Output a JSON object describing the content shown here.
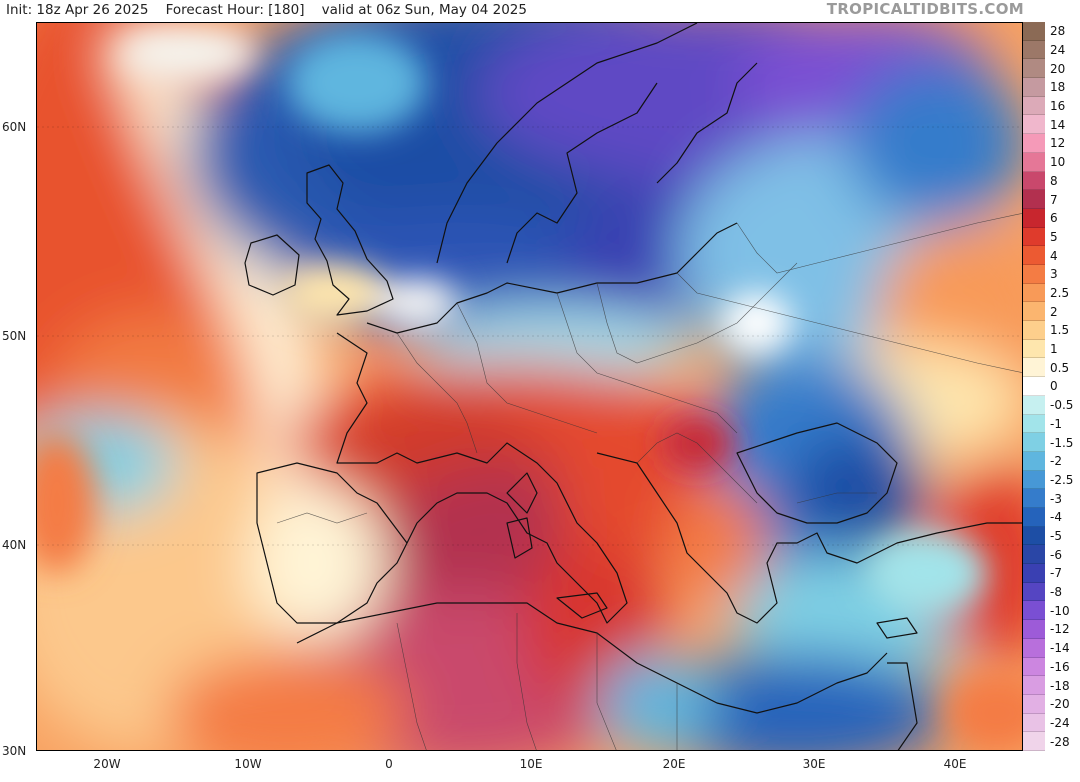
{
  "header": {
    "init": "Init: 18z Apr 26 2025",
    "forecast": "Forecast Hour: [180]",
    "valid": "valid at 06z Sun, May 04 2025",
    "brand": "TROPICALTIDBITS.COM"
  },
  "axes": {
    "lat_labels": [
      "60N",
      "50N",
      "40N",
      "30N"
    ],
    "lon_labels": [
      "20W",
      "10W",
      "0",
      "10E",
      "20E",
      "30E",
      "40E"
    ]
  },
  "colorbar": {
    "levels": [
      {
        "label": "28",
        "color": "#8b6a55"
      },
      {
        "label": "24",
        "color": "#9c7868"
      },
      {
        "label": "20",
        "color": "#b08a82"
      },
      {
        "label": "18",
        "color": "#c59aa0"
      },
      {
        "label": "16",
        "color": "#dcaab8"
      },
      {
        "label": "14",
        "color": "#f0b7cc"
      },
      {
        "label": "12",
        "color": "#f59ab8"
      },
      {
        "label": "10",
        "color": "#e57797"
      },
      {
        "label": "8",
        "color": "#c9486c"
      },
      {
        "label": "7",
        "color": "#b2304f"
      },
      {
        "label": "6",
        "color": "#c8262e"
      },
      {
        "label": "5",
        "color": "#df3b2c"
      },
      {
        "label": "4",
        "color": "#ec5a32"
      },
      {
        "label": "3",
        "color": "#f47c44"
      },
      {
        "label": "2.5",
        "color": "#f89a58"
      },
      {
        "label": "2",
        "color": "#fbb56f"
      },
      {
        "label": "1.5",
        "color": "#fdcf8c"
      },
      {
        "label": "1",
        "color": "#fee6ad"
      },
      {
        "label": "0.5",
        "color": "#fff4d6"
      },
      {
        "label": "0",
        "color": "#ffffff"
      },
      {
        "label": "-0.5",
        "color": "#c6f0f0"
      },
      {
        "label": "-1",
        "color": "#a2e4ea"
      },
      {
        "label": "-1.5",
        "color": "#7fd0e4"
      },
      {
        "label": "-2",
        "color": "#5fb6df"
      },
      {
        "label": "-2.5",
        "color": "#4798d6"
      },
      {
        "label": "-3",
        "color": "#357ccb"
      },
      {
        "label": "-4",
        "color": "#2563bb"
      },
      {
        "label": "-5",
        "color": "#1d4ea5"
      },
      {
        "label": "-6",
        "color": "#2a46a6"
      },
      {
        "label": "-7",
        "color": "#3a40b2"
      },
      {
        "label": "-8",
        "color": "#5545c2"
      },
      {
        "label": "-10",
        "color": "#7a4fd3"
      },
      {
        "label": "-12",
        "color": "#9d5bd8"
      },
      {
        "label": "-14",
        "color": "#b86fdc"
      },
      {
        "label": "-16",
        "color": "#cc86e0"
      },
      {
        "label": "-18",
        "color": "#d99de2"
      },
      {
        "label": "-20",
        "color": "#e2b0e4"
      },
      {
        "label": "-24",
        "color": "#e9c2e6"
      },
      {
        "label": "-28",
        "color": "#f0d4ea"
      }
    ]
  }
}
